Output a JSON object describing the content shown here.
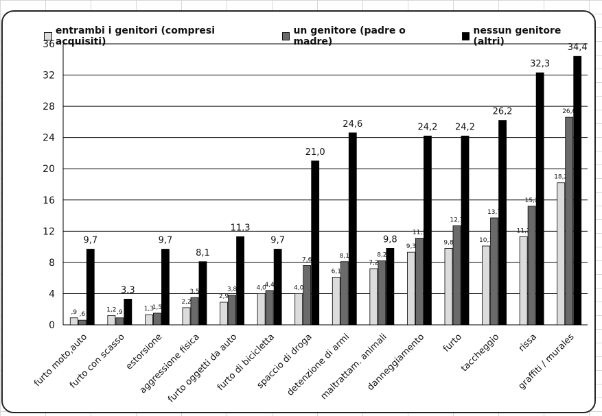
{
  "chart_data": {
    "type": "bar",
    "ylim": [
      0,
      36
    ],
    "yticks": [
      0,
      4,
      8,
      12,
      16,
      20,
      24,
      28,
      32,
      36
    ],
    "grid": true,
    "legend_position": "top",
    "categories": [
      "furto moto,auto",
      "furto con scasso",
      "estorsione",
      "aggressione fisica",
      "furto oggetti da auto",
      "furto di bicicletta",
      "spaccio di droga",
      "detenzione di armi",
      "maltrattam. animali",
      "danneggiamento",
      "furto",
      "taccheggio",
      "rissa",
      "graffiti / murales"
    ],
    "series": [
      {
        "name": "entrambi i genitori (compresi acquisiti)",
        "color": "#dcdcdc",
        "values": [
          0.9,
          1.2,
          1.3,
          2.2,
          2.9,
          4.0,
          4.0,
          6.1,
          7.2,
          9.3,
          9.8,
          10.1,
          11.3,
          18.2
        ],
        "labels": [
          ",9",
          "1,2",
          "1,3",
          "2,2",
          "2,9",
          "4,0",
          "4,0",
          "6,1",
          "7,2",
          "9,3",
          "9,8",
          "10,1",
          "11,3",
          "18,2"
        ]
      },
      {
        "name": "un genitore (padre o madre)",
        "color": "#6a6a6a",
        "values": [
          0.6,
          0.9,
          1.5,
          3.5,
          3.8,
          4.4,
          7.6,
          8.1,
          8.2,
          11.1,
          12.7,
          13.7,
          15.2,
          26.6
        ],
        "labels": [
          ",6",
          ",9",
          "1,5",
          "3,5",
          "3,8",
          "4,4",
          "7,6",
          "8,1",
          "8,2",
          "11,1",
          "12,7",
          "13,7",
          "15,2",
          "26,6"
        ]
      },
      {
        "name": "nessun genitore (altri)",
        "color": "#000000",
        "values": [
          9.7,
          3.3,
          9.7,
          8.1,
          11.3,
          9.7,
          21.0,
          24.6,
          9.8,
          24.2,
          24.2,
          26.2,
          32.3,
          34.4
        ],
        "labels": [
          "9,7",
          "3,3",
          "9,7",
          "8,1",
          "11,3",
          "9,7",
          "21,0",
          "24,6",
          "9,8",
          "24,2",
          "24,2",
          "26,2",
          "32,3",
          "34,4"
        ]
      }
    ]
  }
}
